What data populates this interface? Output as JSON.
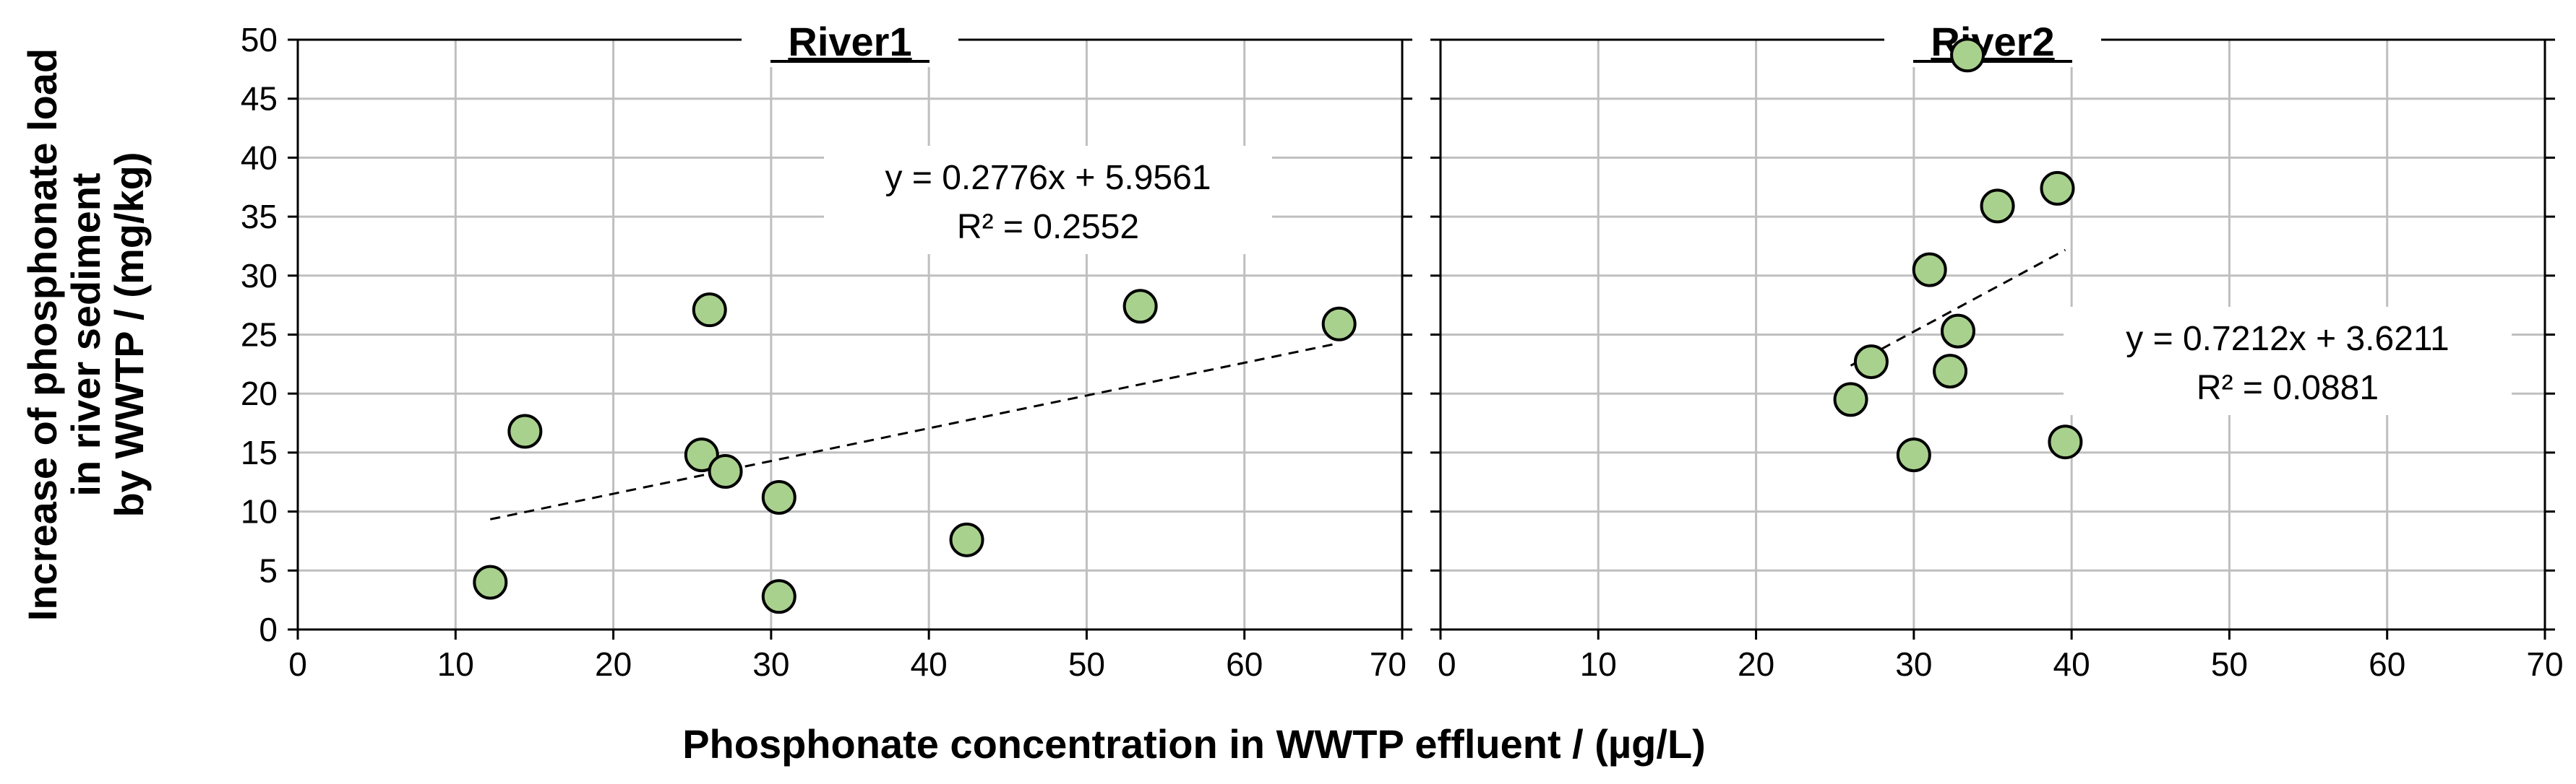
{
  "chart_data": {
    "type": "scatter",
    "xlabel": "Phosphonate concentration in WWTP effluent / (µg/L)",
    "ylabel_lines": [
      "Increase of phosphonate load",
      "in river sediment",
      "by WWTP / (mg/kg)"
    ],
    "xlim": [
      0,
      70
    ],
    "ylim": [
      0,
      50
    ],
    "x_ticks": [
      0,
      10,
      20,
      30,
      40,
      50,
      60,
      70
    ],
    "y_ticks": [
      0,
      5,
      10,
      15,
      20,
      25,
      30,
      35,
      40,
      45,
      50
    ],
    "grid": true,
    "marker_color": "#a9d18e",
    "panels": [
      {
        "title": "River1",
        "points": [
          {
            "x": 12.2,
            "y": 4.0
          },
          {
            "x": 14.4,
            "y": 16.8
          },
          {
            "x": 25.6,
            "y": 14.8
          },
          {
            "x": 26.1,
            "y": 27.1
          },
          {
            "x": 27.1,
            "y": 13.4
          },
          {
            "x": 30.5,
            "y": 11.2
          },
          {
            "x": 30.5,
            "y": 2.8
          },
          {
            "x": 42.4,
            "y": 7.6
          },
          {
            "x": 53.4,
            "y": 27.4
          },
          {
            "x": 66.0,
            "y": 25.9
          }
        ],
        "trendline": {
          "slope": 0.2776,
          "intercept": 5.9561,
          "x_range": [
            12.2,
            66.0
          ]
        },
        "equation": "y = 0.2776x + 5.9561",
        "r2": "R² = 0.2552"
      },
      {
        "title": "River2",
        "points": [
          {
            "x": 26.0,
            "y": 19.5
          },
          {
            "x": 27.3,
            "y": 22.7
          },
          {
            "x": 30.0,
            "y": 14.8
          },
          {
            "x": 31.0,
            "y": 30.5
          },
          {
            "x": 32.3,
            "y": 21.9
          },
          {
            "x": 32.8,
            "y": 25.3
          },
          {
            "x": 33.4,
            "y": 48.7
          },
          {
            "x": 35.3,
            "y": 35.9
          },
          {
            "x": 39.1,
            "y": 37.4
          },
          {
            "x": 39.6,
            "y": 15.9
          }
        ],
        "trendline": {
          "slope": 0.7212,
          "intercept": 3.6211,
          "x_range": [
            26.0,
            39.6
          ]
        },
        "equation": "y = 0.7212x + 3.6211",
        "r2": "R² = 0.0881"
      }
    ]
  }
}
